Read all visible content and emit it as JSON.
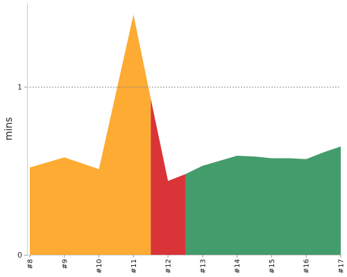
{
  "chart_data": {
    "type": "area",
    "title": "",
    "xlabel": "",
    "ylabel": "mins",
    "x": [
      8,
      9,
      10,
      11,
      12,
      13,
      14,
      15,
      16,
      17
    ],
    "xtick_labels": [
      "#8",
      "#9",
      "#10",
      "#11",
      "#12",
      "#13",
      "#14",
      "#15",
      "#16",
      "#17"
    ],
    "ylim": [
      0,
      1.43
    ],
    "yticks": [
      0,
      1
    ],
    "ytick_labels": [
      "0",
      "1"
    ],
    "reference_line": {
      "y": 1,
      "style": "dotted"
    },
    "grid": false,
    "series": [
      {
        "color": "#fdab33",
        "points": [
          [
            8,
            0.52
          ],
          [
            9,
            0.58
          ],
          [
            10,
            0.51
          ],
          [
            11,
            1.43
          ],
          [
            11.5,
            0.93
          ]
        ]
      },
      {
        "color": "#d93538",
        "points": [
          [
            11.5,
            0.93
          ],
          [
            12,
            0.44
          ],
          [
            12.5,
            0.48
          ]
        ]
      },
      {
        "color": "#439c6b",
        "points": [
          [
            12.5,
            0.48
          ],
          [
            13,
            0.53
          ],
          [
            13.5,
            0.56
          ],
          [
            14,
            0.59
          ],
          [
            14.5,
            0.585
          ],
          [
            15,
            0.575
          ],
          [
            15.5,
            0.575
          ],
          [
            16,
            0.57
          ],
          [
            16.5,
            0.61
          ],
          [
            17,
            0.645
          ]
        ]
      }
    ]
  }
}
